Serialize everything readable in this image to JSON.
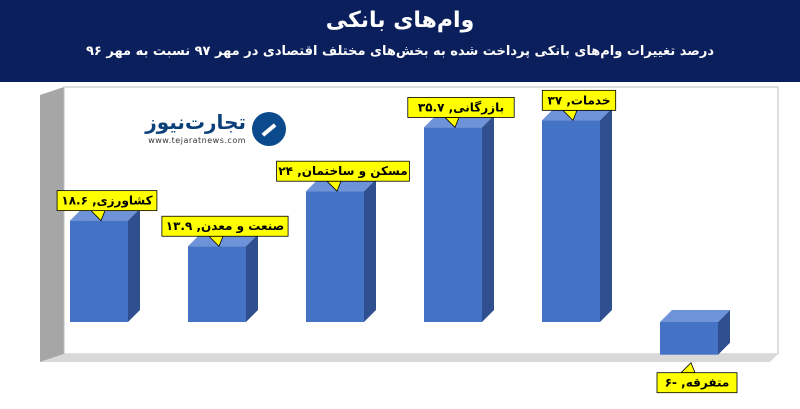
{
  "header": {
    "title": "وام‌های بانکی",
    "subtitle": "درصد تغییرات وام‌های بانکی پرداخت شده به بخش‌های مختلف اقتصادی در مهر ۹۷ نسبت به مهر ۹۶"
  },
  "logo": {
    "name": "تجارت‌نیوز",
    "url": "www.tejaratnews.com"
  },
  "colors": {
    "header_bg": "#0b1f5c",
    "bar_front": "#4472c4",
    "bar_side": "#2f4f8f",
    "bar_top": "#6f93d8",
    "label_bg": "#ffff00",
    "wall": "#a6a6a6"
  },
  "chart_data": {
    "type": "bar",
    "categories": [
      "کشاورزی",
      "صنعت و معدن",
      "مسکن و ساختمان",
      "بازرگانی",
      "خدمات",
      "متفرقه"
    ],
    "values": [
      18.6,
      13.9,
      24,
      35.7,
      37,
      -6
    ],
    "data_labels": [
      "کشاورزی, ۱۸.۶",
      "صنعت و معدن, ۱۳.۹",
      "مسکن و ساختمان, ۲۴",
      "بازرگانی, ۳۵.۷",
      "خدمات, ۳۷",
      "متفرقه, -۶"
    ],
    "ylim": [
      -8,
      40
    ],
    "grid": false,
    "legend": "none",
    "style": "3d-column"
  }
}
